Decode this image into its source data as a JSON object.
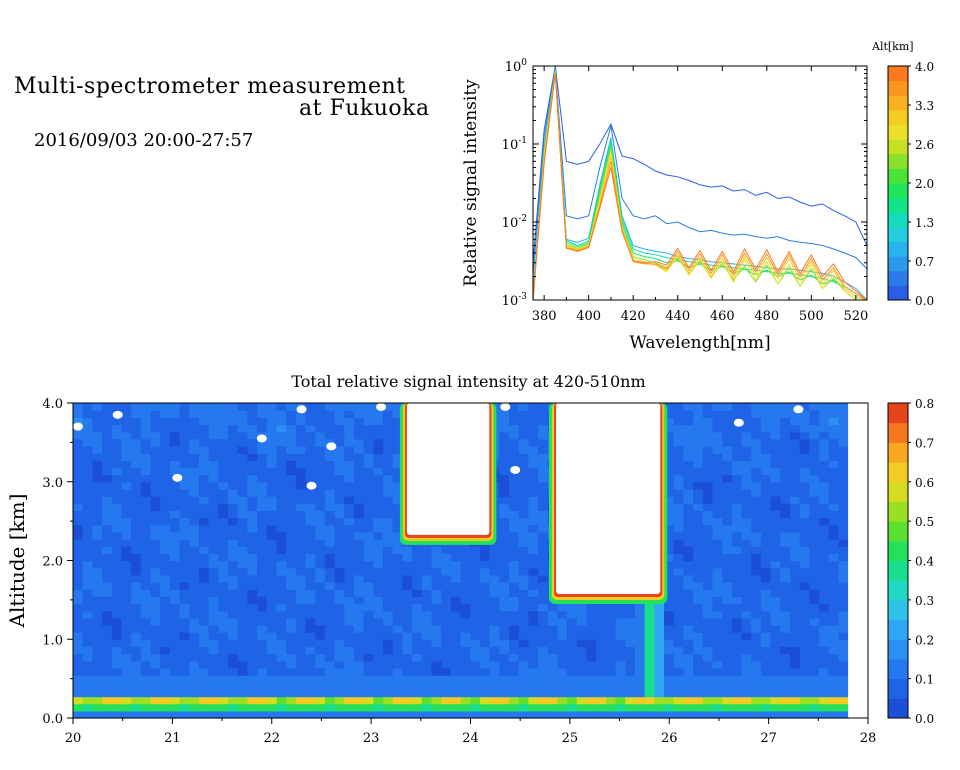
{
  "header": {
    "title_line1": "Multi-spectrometer measurement",
    "title_line2": "at Fukuoka",
    "date_range": "2016/09/03 20:00-27:57"
  },
  "chart_data": [
    {
      "type": "line",
      "scale_y": "log",
      "xlabel": "Wavelength[nm]",
      "ylabel": "Relative signal intensity",
      "xlim": [
        375,
        525
      ],
      "ylim": [
        0.001,
        1
      ],
      "x_ticks": [
        380,
        400,
        420,
        440,
        460,
        480,
        500,
        520
      ],
      "y_ticks": [
        {
          "v": 1,
          "b": "10",
          "e": "0"
        },
        {
          "v": 0.1,
          "b": "10",
          "e": "-1"
        },
        {
          "v": 0.01,
          "b": "10",
          "e": "-2"
        },
        {
          "v": 0.001,
          "b": "10",
          "e": "-3"
        }
      ],
      "x": [
        375,
        380,
        385,
        390,
        395,
        400,
        405,
        410,
        415,
        420,
        425,
        430,
        435,
        440,
        445,
        450,
        455,
        460,
        465,
        470,
        475,
        480,
        485,
        490,
        495,
        500,
        505,
        510,
        515,
        520,
        525
      ],
      "series": [
        {
          "alt": 0.1,
          "values": [
            0.003,
            0.15,
            1.0,
            0.06,
            0.055,
            0.06,
            0.1,
            0.18,
            0.07,
            0.065,
            0.055,
            0.045,
            0.04,
            0.038,
            0.034,
            0.03,
            0.028,
            0.029,
            0.025,
            0.026,
            0.022,
            0.024,
            0.02,
            0.021,
            0.018,
            0.016,
            0.017,
            0.014,
            0.012,
            0.01,
            0.005
          ]
        },
        {
          "alt": 0.35,
          "values": [
            0.002,
            0.12,
            0.95,
            0.012,
            0.011,
            0.012,
            0.05,
            0.17,
            0.02,
            0.012,
            0.011,
            0.012,
            0.0095,
            0.01,
            0.0085,
            0.0075,
            0.0078,
            0.0072,
            0.0068,
            0.007,
            0.0065,
            0.0062,
            0.0065,
            0.0058,
            0.0055,
            0.0053,
            0.005,
            0.0045,
            0.004,
            0.0035,
            0.0025
          ]
        },
        {
          "alt": 0.9,
          "values": [
            0.0012,
            0.09,
            0.9,
            0.006,
            0.0055,
            0.0062,
            0.03,
            0.12,
            0.012,
            0.005,
            0.0045,
            0.0042,
            0.004,
            0.0036,
            0.0034,
            0.0033,
            0.0031,
            0.003,
            0.0029,
            0.0028,
            0.0027,
            0.0026,
            0.0025,
            0.0025,
            0.0024,
            0.0023,
            0.0022,
            0.002,
            0.0017,
            0.0014,
            0.001
          ]
        },
        {
          "alt": 1.4,
          "values": [
            0.001,
            0.085,
            0.88,
            0.0058,
            0.005,
            0.0057,
            0.028,
            0.11,
            0.011,
            0.0045,
            0.004,
            0.0038,
            0.0035,
            0.0033,
            0.0031,
            0.003,
            0.0028,
            0.0027,
            0.0026,
            0.0025,
            0.0024,
            0.0023,
            0.0022,
            0.0022,
            0.0021,
            0.002,
            0.0019,
            0.0017,
            0.0015,
            0.0012,
            0.001
          ]
        },
        {
          "alt": 1.9,
          "values": [
            0.001,
            0.08,
            0.86,
            0.0055,
            0.0048,
            0.0054,
            0.025,
            0.1,
            0.01,
            0.004,
            0.0036,
            0.0034,
            0.003,
            0.0032,
            0.0026,
            0.0029,
            0.0024,
            0.0027,
            0.0022,
            0.0025,
            0.0021,
            0.0024,
            0.002,
            0.0023,
            0.0018,
            0.0021,
            0.0016,
            0.0018,
            0.0014,
            0.0011,
            0.001
          ]
        },
        {
          "alt": 2.4,
          "values": [
            0.001,
            0.075,
            0.85,
            0.0052,
            0.0046,
            0.0052,
            0.022,
            0.09,
            0.009,
            0.0036,
            0.0033,
            0.003,
            0.0026,
            0.0034,
            0.0022,
            0.0031,
            0.002,
            0.0029,
            0.0018,
            0.0027,
            0.0017,
            0.0028,
            0.0016,
            0.0026,
            0.0015,
            0.0025,
            0.0014,
            0.0019,
            0.0013,
            0.001,
            0.001
          ]
        },
        {
          "alt": 2.8,
          "values": [
            0.001,
            0.07,
            0.84,
            0.005,
            0.0045,
            0.005,
            0.02,
            0.08,
            0.0085,
            0.0034,
            0.0031,
            0.0028,
            0.0023,
            0.0036,
            0.0021,
            0.0033,
            0.0019,
            0.0031,
            0.0017,
            0.0033,
            0.0018,
            0.0031,
            0.0016,
            0.0029,
            0.0015,
            0.0028,
            0.0014,
            0.0021,
            0.0013,
            0.001,
            0.001
          ]
        },
        {
          "alt": 3.2,
          "values": [
            0.001,
            0.065,
            0.83,
            0.0048,
            0.0044,
            0.0049,
            0.018,
            0.07,
            0.008,
            0.0032,
            0.003,
            0.0028,
            0.0024,
            0.0038,
            0.0022,
            0.0035,
            0.002,
            0.0034,
            0.0019,
            0.0036,
            0.0021,
            0.0035,
            0.0019,
            0.0034,
            0.0018,
            0.0031,
            0.0016,
            0.0024,
            0.0014,
            0.0011,
            0.001
          ]
        },
        {
          "alt": 3.6,
          "values": [
            0.001,
            0.06,
            0.82,
            0.0047,
            0.0043,
            0.0048,
            0.016,
            0.06,
            0.0078,
            0.0031,
            0.0029,
            0.0029,
            0.0025,
            0.0042,
            0.0024,
            0.0039,
            0.0022,
            0.0038,
            0.0021,
            0.004,
            0.0023,
            0.0039,
            0.0021,
            0.0038,
            0.002,
            0.0034,
            0.0018,
            0.0026,
            0.0015,
            0.0012,
            0.001
          ]
        },
        {
          "alt": 3.95,
          "values": [
            0.001,
            0.055,
            0.8,
            0.0046,
            0.0042,
            0.0047,
            0.015,
            0.05,
            0.0075,
            0.0032,
            0.003,
            0.0031,
            0.0028,
            0.0046,
            0.0026,
            0.0043,
            0.0024,
            0.0042,
            0.0023,
            0.0045,
            0.0025,
            0.0044,
            0.0023,
            0.0042,
            0.0022,
            0.0038,
            0.002,
            0.0029,
            0.0017,
            0.0013,
            0.001
          ]
        }
      ],
      "colorbar": {
        "label": "Alt[km]",
        "min": 0,
        "max": 4,
        "tick_labels": [
          "4.0",
          "3.3",
          "2.6",
          "2.0",
          "1.3",
          "0.7",
          "0.0"
        ],
        "colors": [
          "#2a5ee8",
          "#2b7be8",
          "#2b99ea",
          "#2ab4ef",
          "#22cde0",
          "#14dcb8",
          "#12e48c",
          "#1fe65a",
          "#4be23a",
          "#8ae02a",
          "#c6e026",
          "#eddf2a",
          "#f5cd22",
          "#f8b11f",
          "#fa9620",
          "#fb7a1f"
        ]
      }
    },
    {
      "type": "heatmap",
      "title": "Total relative signal intensity at 420-510nm",
      "xlabel": "",
      "ylabel": "Altitude [km]",
      "xlim": [
        20,
        28
      ],
      "ylim": [
        0,
        4
      ],
      "x_ticks": [
        "20",
        "21",
        "22",
        "23",
        "24",
        "25",
        "26",
        "27",
        "28"
      ],
      "y_ticks": [
        "0.0",
        "1.0",
        "2.0",
        "3.0",
        "4.0"
      ],
      "data_x_end": 27.8,
      "near_ground_layer": {
        "alt_range": [
          0.12,
          0.28
        ],
        "value_range": [
          0.35,
          0.8
        ]
      },
      "cloud_regions": [
        {
          "x": [
            23.35,
            24.2
          ],
          "top_alt": 4.0,
          "base_alt": 2.3,
          "value": "saturated"
        },
        {
          "x": [
            24.85,
            25.92
          ],
          "top_alt": 4.0,
          "base_alt": 1.55,
          "value": "saturated"
        },
        {
          "x": [
            25.7,
            25.95
          ],
          "alt_range": [
            0.3,
            1.5
          ],
          "value_range": [
            0.3,
            0.45
          ]
        }
      ],
      "colorbar": {
        "min": 0,
        "max": 0.8,
        "tick_labels": [
          "0.8",
          "0.7",
          "0.6",
          "0.5",
          "0.4",
          "0.3",
          "0.2",
          "0.1",
          "0.0"
        ],
        "colors": [
          "#1a4fd6",
          "#1f63e6",
          "#2578ee",
          "#2c8ff2",
          "#30a7f2",
          "#2fc3ea",
          "#22d8c4",
          "#18df8e",
          "#24e05a",
          "#5cdf31",
          "#9bdf24",
          "#d5dc22",
          "#f4cb22",
          "#f8a720",
          "#f6781e",
          "#e8441c"
        ]
      }
    }
  ]
}
